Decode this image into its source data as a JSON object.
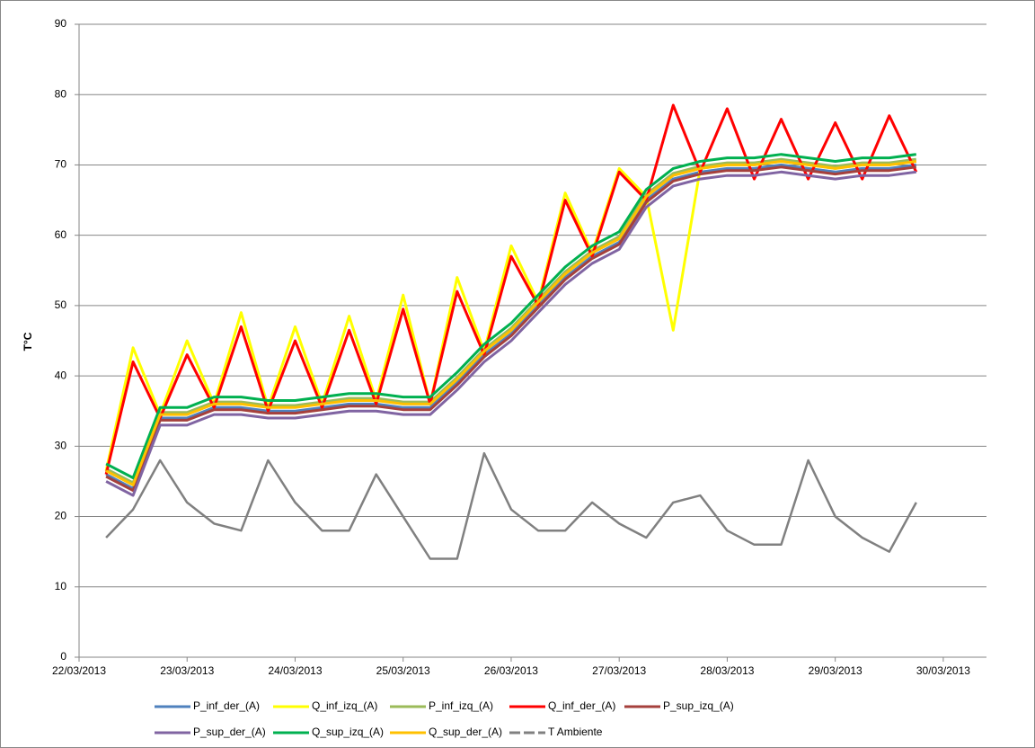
{
  "chart_data": {
    "type": "line",
    "y_label": "T°C",
    "x": [
      22.25,
      22.5,
      22.75,
      23,
      23.25,
      23.5,
      23.75,
      24,
      24.25,
      24.5,
      24.75,
      25,
      25.25,
      25.5,
      25.75,
      26,
      26.25,
      26.5,
      26.75,
      27,
      27.25,
      27.5,
      27.75,
      28,
      28.25,
      28.5,
      28.75,
      29,
      29.25,
      29.5,
      29.75
    ],
    "xlim": [
      22,
      30.4
    ],
    "xticks": [
      {
        "value": 22,
        "label": "22/03/2013"
      },
      {
        "value": 23,
        "label": "23/03/2013"
      },
      {
        "value": 24,
        "label": "24/03/2013"
      },
      {
        "value": 25,
        "label": "25/03/2013"
      },
      {
        "value": 26,
        "label": "26/03/2013"
      },
      {
        "value": 27,
        "label": "27/03/2013"
      },
      {
        "value": 28,
        "label": "28/03/2013"
      },
      {
        "value": 29,
        "label": "29/03/2013"
      },
      {
        "value": 30,
        "label": "30/03/2013"
      }
    ],
    "ylim": [
      0,
      90
    ],
    "yticks": [
      0,
      10,
      20,
      30,
      40,
      50,
      60,
      70,
      80,
      90
    ],
    "grid": true,
    "legend": "bottom",
    "series": [
      {
        "name": "P_inf_der_(A)",
        "color": "#4f81bd",
        "values": [
          26,
          24,
          34,
          34,
          35.5,
          35.5,
          35,
          35,
          35.5,
          36,
          36,
          35.5,
          35.5,
          39,
          43,
          46,
          50,
          54,
          57,
          59,
          65,
          68,
          69,
          69.5,
          69.5,
          70,
          69.5,
          69,
          69.5,
          69.5,
          70
        ]
      },
      {
        "name": "Q_inf_izq_(A)",
        "color": "#ffff00",
        "values": [
          26.5,
          44,
          34.5,
          45,
          36,
          49,
          35.5,
          47,
          36,
          48.5,
          36.5,
          51.5,
          36,
          54,
          43.5,
          58.5,
          50.5,
          66,
          57.5,
          69.5,
          65.5,
          46.5,
          69.5,
          70,
          70,
          70.5,
          70,
          69.5,
          70,
          70,
          70.5
        ]
      },
      {
        "name": "P_inf_izq_(A)",
        "color": "#9bbb59",
        "values": [
          26.8,
          24.8,
          34.8,
          34.8,
          36.3,
          36.3,
          35.8,
          35.8,
          36.3,
          36.8,
          36.8,
          36.3,
          36.3,
          39.8,
          43.8,
          46.8,
          50.8,
          54.8,
          57.8,
          59.8,
          65.8,
          68.8,
          69.8,
          70.3,
          70.3,
          70.8,
          70.3,
          69.8,
          70.3,
          70.3,
          70.8
        ]
      },
      {
        "name": "Q_inf_der_(A)",
        "color": "#ff0000",
        "values": [
          26,
          42,
          34,
          43,
          35.5,
          47,
          35,
          45,
          35.5,
          46.5,
          36,
          49.5,
          36,
          52,
          43,
          57,
          50,
          65,
          57,
          69,
          65,
          78.5,
          69,
          78,
          68,
          76.5,
          68,
          76,
          68,
          77,
          69
        ]
      },
      {
        "name": "P_sup_izq_(A)",
        "color": "#a5403c",
        "values": [
          25.7,
          23.7,
          33.7,
          33.7,
          35.2,
          35.2,
          34.7,
          34.7,
          35.2,
          35.7,
          35.7,
          35.2,
          35.2,
          38.7,
          42.7,
          45.7,
          49.7,
          53.7,
          56.7,
          58.7,
          64.7,
          67.7,
          68.7,
          69.2,
          69.2,
          69.7,
          69.2,
          68.7,
          69.2,
          69.2,
          69.7
        ]
      },
      {
        "name": "P_sup_der_(A)",
        "color": "#8064a2",
        "values": [
          25,
          23,
          33,
          33,
          34.5,
          34.5,
          34,
          34,
          34.5,
          35,
          35,
          34.5,
          34.5,
          38,
          42,
          45,
          49,
          53,
          56,
          58,
          64,
          67,
          68,
          68.5,
          68.5,
          69,
          68.5,
          68,
          68.5,
          68.5,
          69
        ]
      },
      {
        "name": "Q_sup_izq_(A)",
        "color": "#00b050",
        "values": [
          27.5,
          25.5,
          35.5,
          35.5,
          37,
          37,
          36.5,
          36.5,
          37,
          37.5,
          37.5,
          37,
          37,
          40.5,
          44.5,
          47.5,
          51.5,
          55.5,
          58.5,
          60.5,
          66.5,
          69.5,
          70.5,
          71,
          71,
          71.5,
          71,
          70.5,
          71,
          71,
          71.5
        ]
      },
      {
        "name": "Q_sup_der_(A)",
        "color": "#ffc000",
        "values": [
          26.5,
          24.5,
          34.5,
          34.5,
          36,
          36,
          35.5,
          35.5,
          36,
          36.5,
          36.5,
          36,
          36,
          39.5,
          43.5,
          46.5,
          50.5,
          54.5,
          57.5,
          59.5,
          65.5,
          68.5,
          69.5,
          70,
          70,
          70.5,
          70,
          69.5,
          70,
          70,
          70.5
        ]
      },
      {
        "name": "T Ambiente",
        "color": "#808080",
        "dashed": true,
        "values": [
          17,
          21,
          28,
          22,
          19,
          18,
          28,
          22,
          18,
          18,
          26,
          20,
          14,
          14,
          29,
          21,
          18,
          18,
          22,
          19,
          17,
          22,
          23,
          18,
          16,
          16,
          28,
          20,
          17,
          15,
          22
        ]
      }
    ]
  }
}
